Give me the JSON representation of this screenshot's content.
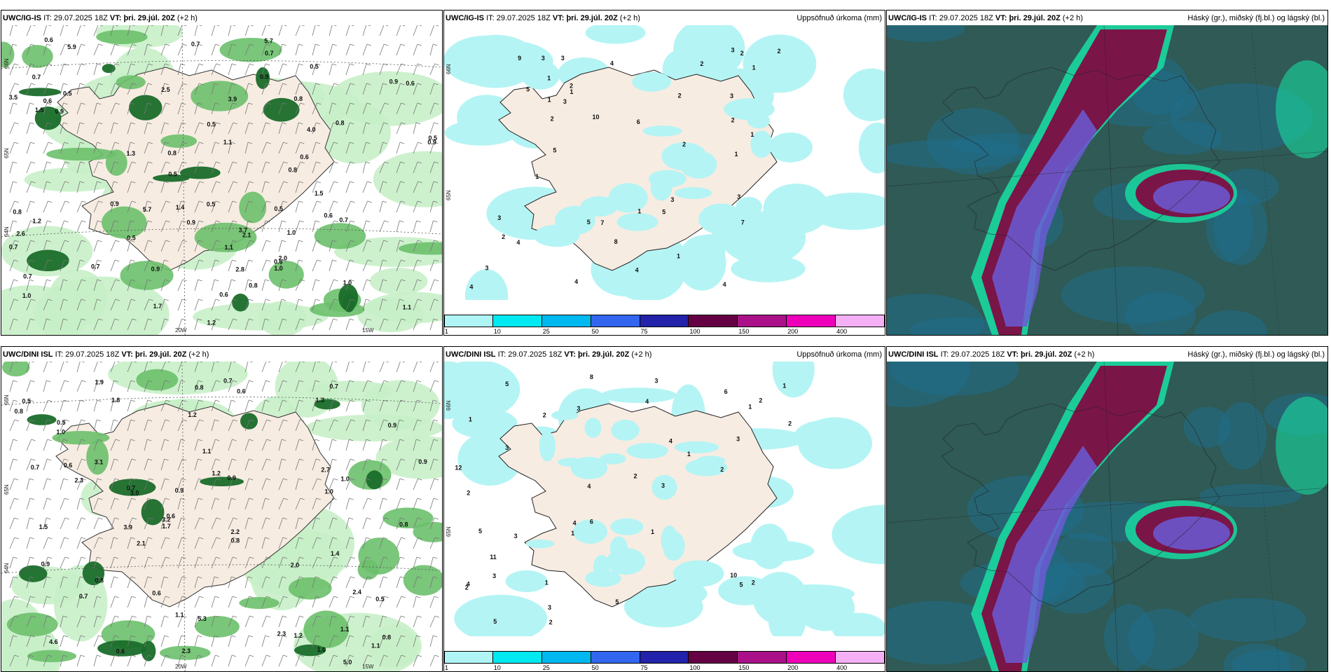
{
  "rows": [
    {
      "model": "UWC/IG-IS",
      "it_label": "IT:",
      "it_value": "29.07.2025 18Z",
      "vt_label": "VT:",
      "vt_value": "þri. 29.júl. 20Z",
      "lead": "(+2 h)"
    },
    {
      "model": "UWC/DINI ISL",
      "it_label": "IT:",
      "it_value": "29.07.2025 18Z",
      "vt_label": "VT:",
      "vt_value": "þri. 29.júl. 20Z",
      "lead": "(+2 h)"
    }
  ],
  "panel_titles": {
    "precip": "Uppsöfnuð úrkoma (mm)",
    "clouds": "Háský (gr.), miðský (fj.bl.) og lágský (bl.)"
  },
  "axis_labels": {
    "lat66": "66N",
    "lat65": "65N",
    "lat64": "64N",
    "lon20": "20W",
    "lon15": "15W"
  },
  "legend": {
    "ticks": [
      "1",
      "10",
      "25",
      "50",
      "75",
      "100",
      "150",
      "200",
      "400"
    ],
    "colors": [
      "#b0f5f5",
      "#00e8f0",
      "#00b8f0",
      "#3366ee",
      "#2222aa",
      "#660044",
      "#aa1188",
      "#ee00bb",
      "#f5b0f5"
    ]
  },
  "colors": {
    "land": "#f7ece2",
    "precip_light": "#b5f4f4",
    "green_light": "#c8f0c8",
    "green_mid": "#6cc06c",
    "green_dark": "#1a6d2a",
    "cloud_bg": "#2f5a55",
    "cloud_high": "#7a1548",
    "cloud_mid": "#6b5bd6",
    "cloud_edge": "#19d8a0"
  },
  "wind_labels_top": [
    "0.7",
    "0.6",
    "0.5",
    "0.8",
    "0.5",
    "0.7",
    "0.8",
    "0.9",
    "0.7",
    "0.6",
    "0.5",
    "1.1",
    "0.9",
    "0.7",
    "0.9",
    "1.0",
    "0.9",
    "1.1",
    "0.5",
    "0.8",
    "1.0",
    "1.2",
    "0.7",
    "0.6",
    "0.5",
    "0.9",
    "1.1",
    "0.8",
    "2.0",
    "1.5",
    "0.6",
    "0.7",
    "1.4",
    "0.5",
    "0.8",
    "1.3",
    "3.5",
    "3.9",
    "4.0",
    "0.6",
    "0.9",
    "2.6",
    "3.7",
    "1.5",
    "2.8",
    "5.9",
    "5.7",
    "5.7",
    "1.2",
    "1.7",
    "2.1",
    "0.6",
    "0.5",
    "0.5",
    "0.7",
    "1.0",
    "0.9",
    "0.6",
    "2.5",
    "0.8",
    "1.0"
  ],
  "wind_labels_bottom": [
    "0.7",
    "2.3",
    "0.8",
    "1.5",
    "1.8",
    "1.9",
    "2.3",
    "0.9",
    "0.8",
    "0.9",
    "1.2",
    "1.1",
    "1.3",
    "2.0",
    "0.7",
    "0.6",
    "1.1",
    "1.2",
    "1.1",
    "0.6",
    "1.0",
    "2.1",
    "0.8",
    "1.0",
    "0.6",
    "0.8",
    "1.2",
    "0.9",
    "1.0",
    "0.7",
    "5.0",
    "3.9",
    "0.5",
    "0.7",
    "0.6",
    "1.0",
    "0.9",
    "3.0",
    "3.2",
    "3.1",
    "5.3",
    "0.8",
    "1.4",
    "2.3",
    "2.4",
    "4.6",
    "2.7",
    "1.7",
    "2.2",
    "0.6",
    "0.9",
    "1.1",
    "0.8",
    "0.7",
    "0.5",
    "0.5"
  ],
  "precip_labels_top": [
    "2",
    "1",
    "2",
    "3",
    "3",
    "4",
    "3",
    "4",
    "1",
    "3",
    "1",
    "2",
    "3",
    "5",
    "1",
    "4",
    "2",
    "3",
    "3",
    "2",
    "2",
    "3",
    "1",
    "2",
    "4",
    "8",
    "6",
    "7",
    "1",
    "2",
    "2",
    "5",
    "3",
    "1",
    "9",
    "4",
    "4",
    "7",
    "1",
    "1",
    "5",
    "10",
    "5"
  ],
  "precip_labels_bottom": [
    "4",
    "3",
    "2",
    "3",
    "3",
    "1",
    "5",
    "4",
    "4",
    "2",
    "2",
    "3",
    "2",
    "1",
    "6",
    "2",
    "1",
    "2",
    "1",
    "2",
    "3",
    "3",
    "3",
    "5",
    "1",
    "2",
    "4",
    "8",
    "6",
    "11",
    "5",
    "12",
    "5",
    "10",
    "4",
    "1",
    "5",
    "3",
    "1",
    "2"
  ]
}
